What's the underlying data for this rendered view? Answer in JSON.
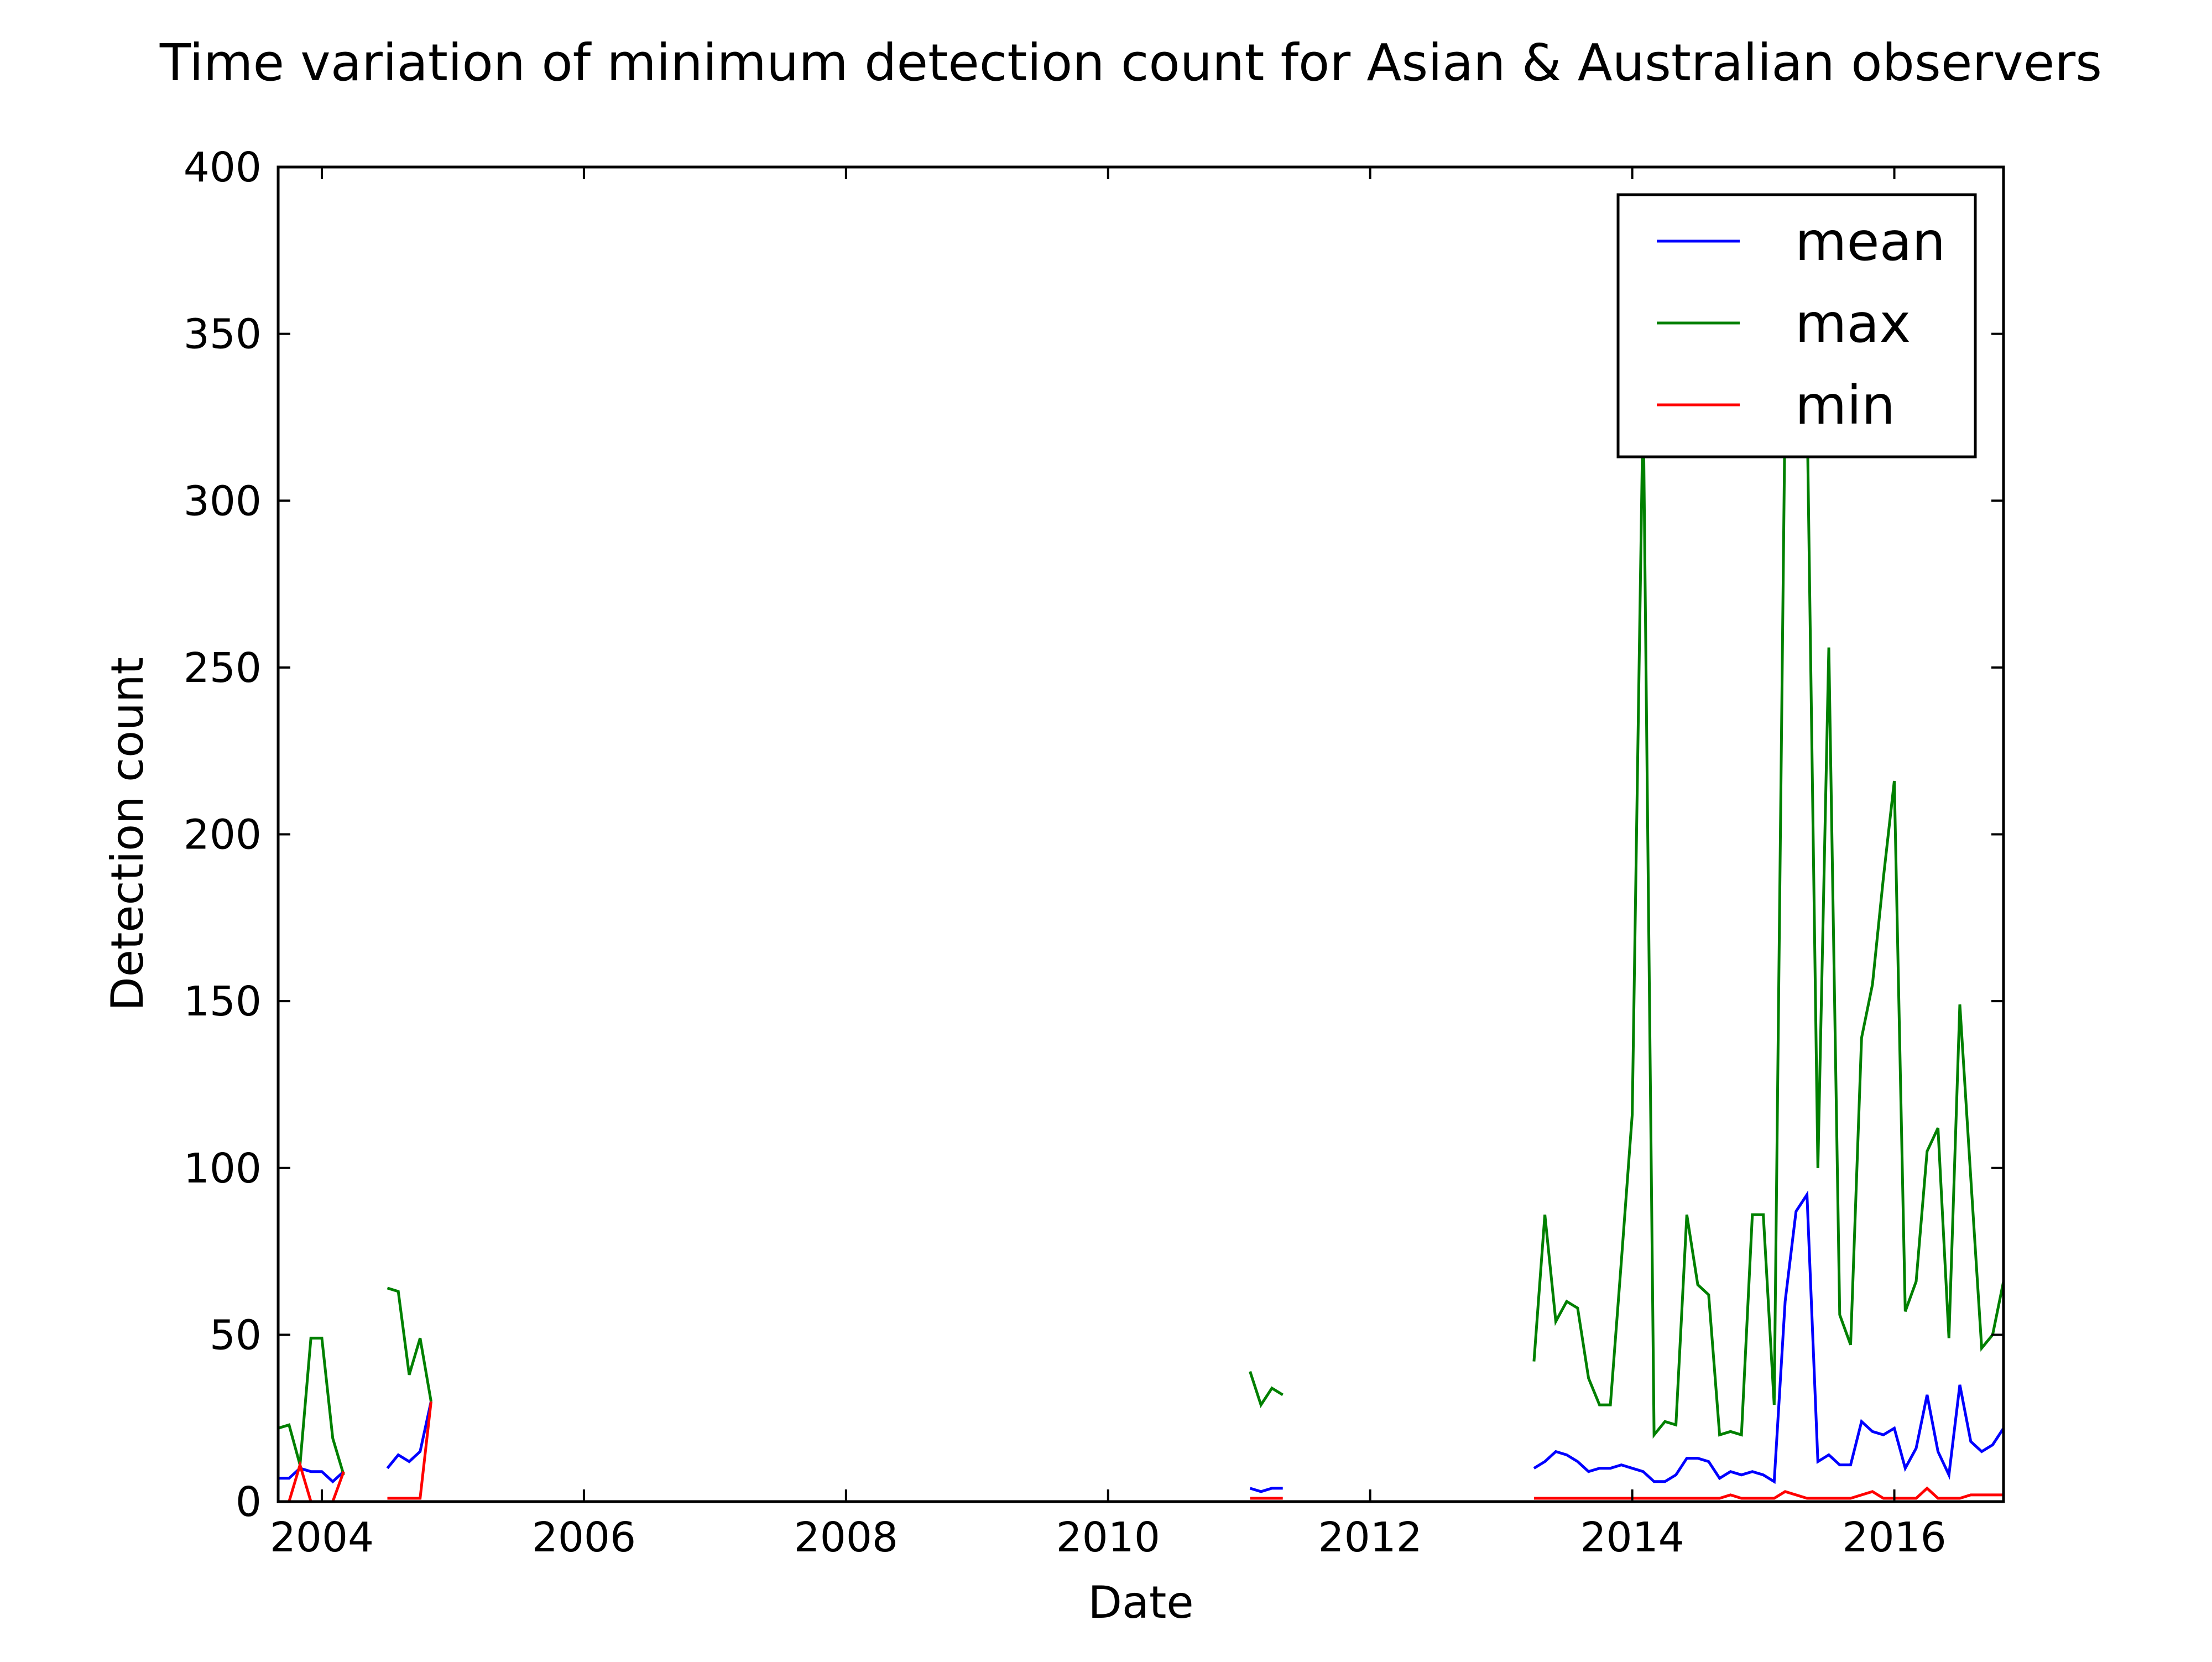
{
  "chart_data": {
    "type": "line",
    "title": "Time variation of minimum detection count for Asian & Australian observers",
    "xlabel": "Date",
    "ylabel": "Detection count",
    "xlim": [
      "2003-09",
      "2016-11"
    ],
    "ylim": [
      0,
      400
    ],
    "x_ticks": [
      "2004",
      "2006",
      "2008",
      "2010",
      "2012",
      "2014",
      "2016"
    ],
    "y_ticks": [
      "0",
      "50",
      "100",
      "150",
      "200",
      "250",
      "300",
      "350",
      "400"
    ],
    "grid": false,
    "legend_position": "top-right",
    "series": [
      {
        "name": "mean",
        "color": "#0000ff",
        "segments": [
          [
            [
              "2003-09",
              7
            ],
            [
              "2003-10",
              7
            ],
            [
              "2003-11",
              10
            ],
            [
              "2003-12",
              9
            ],
            [
              "2004-01",
              9
            ],
            [
              "2004-02",
              6
            ],
            [
              "2004-03",
              9
            ]
          ],
          [
            [
              "2004-07",
              10
            ],
            [
              "2004-08",
              14
            ],
            [
              "2004-09",
              12
            ],
            [
              "2004-10",
              15
            ],
            [
              "2004-11",
              30
            ]
          ],
          [
            [
              "2011-02",
              4
            ],
            [
              "2011-03",
              3
            ],
            [
              "2011-04",
              4
            ],
            [
              "2011-05",
              4
            ]
          ],
          [
            [
              "2013-04",
              10
            ],
            [
              "2013-05",
              12
            ],
            [
              "2013-06",
              15
            ],
            [
              "2013-07",
              14
            ],
            [
              "2013-08",
              12
            ],
            [
              "2013-09",
              9
            ],
            [
              "2013-10",
              10
            ],
            [
              "2013-11",
              10
            ],
            [
              "2013-12",
              11
            ],
            [
              "2014-01",
              10
            ],
            [
              "2014-02",
              9
            ],
            [
              "2014-03",
              6
            ],
            [
              "2014-04",
              6
            ],
            [
              "2014-05",
              8
            ],
            [
              "2014-06",
              13
            ],
            [
              "2014-07",
              13
            ],
            [
              "2014-08",
              12
            ],
            [
              "2014-09",
              7
            ],
            [
              "2014-10",
              9
            ],
            [
              "2014-11",
              8
            ],
            [
              "2014-12",
              9
            ],
            [
              "2015-01",
              8
            ],
            [
              "2015-02",
              6
            ],
            [
              "2015-03",
              60
            ],
            [
              "2015-04",
              87
            ],
            [
              "2015-05",
              92
            ],
            [
              "2015-06",
              12
            ],
            [
              "2015-07",
              14
            ],
            [
              "2015-08",
              11
            ],
            [
              "2015-09",
              11
            ],
            [
              "2015-10",
              24
            ],
            [
              "2015-11",
              21
            ],
            [
              "2015-12",
              20
            ],
            [
              "2016-01",
              22
            ],
            [
              "2016-02",
              10
            ],
            [
              "2016-03",
              16
            ],
            [
              "2016-04",
              32
            ],
            [
              "2016-05",
              15
            ],
            [
              "2016-06",
              8
            ],
            [
              "2016-07",
              35
            ],
            [
              "2016-08",
              18
            ],
            [
              "2016-09",
              15
            ],
            [
              "2016-10",
              17
            ],
            [
              "2016-11",
              22
            ]
          ]
        ]
      },
      {
        "name": "max",
        "color": "#008000",
        "segments": [
          [
            [
              "2003-09",
              22
            ],
            [
              "2003-10",
              23
            ],
            [
              "2003-11",
              11
            ],
            [
              "2003-12",
              49
            ],
            [
              "2004-01",
              49
            ],
            [
              "2004-02",
              19
            ],
            [
              "2004-03",
              8
            ]
          ],
          [
            [
              "2004-07",
              64
            ],
            [
              "2004-08",
              63
            ],
            [
              "2004-09",
              38
            ],
            [
              "2004-10",
              49
            ],
            [
              "2004-11",
              30
            ]
          ],
          [
            [
              "2011-02",
              39
            ],
            [
              "2011-03",
              29
            ],
            [
              "2011-04",
              34
            ],
            [
              "2011-05",
              32
            ]
          ],
          [
            [
              "2013-04",
              42
            ],
            [
              "2013-05",
              86
            ],
            [
              "2013-06",
              54
            ],
            [
              "2013-07",
              60
            ],
            [
              "2013-08",
              58
            ],
            [
              "2013-09",
              37
            ],
            [
              "2013-10",
              29
            ],
            [
              "2013-11",
              29
            ],
            [
              "2013-12",
              72
            ],
            [
              "2014-01",
              116
            ],
            [
              "2014-02",
              330
            ],
            [
              "2014-03",
              20
            ],
            [
              "2014-04",
              24
            ],
            [
              "2014-05",
              23
            ],
            [
              "2014-06",
              86
            ],
            [
              "2014-07",
              65
            ],
            [
              "2014-08",
              62
            ],
            [
              "2014-09",
              20
            ],
            [
              "2014-10",
              21
            ],
            [
              "2014-11",
              20
            ],
            [
              "2014-12",
              86
            ],
            [
              "2015-01",
              86
            ],
            [
              "2015-02",
              29
            ],
            [
              "2015-03",
              330
            ],
            [
              "2015-04",
              330
            ],
            [
              "2015-05",
              330
            ],
            [
              "2015-06",
              100
            ],
            [
              "2015-07",
              256
            ],
            [
              "2015-08",
              56
            ],
            [
              "2015-09",
              47
            ],
            [
              "2015-10",
              139
            ],
            [
              "2015-11",
              155
            ],
            [
              "2015-12",
              187
            ],
            [
              "2016-01",
              216
            ],
            [
              "2016-02",
              57
            ],
            [
              "2016-03",
              66
            ],
            [
              "2016-04",
              105
            ],
            [
              "2016-05",
              112
            ],
            [
              "2016-06",
              49
            ],
            [
              "2016-07",
              149
            ],
            [
              "2016-08",
              97
            ],
            [
              "2016-09",
              46
            ],
            [
              "2016-10",
              50
            ],
            [
              "2016-11",
              66
            ]
          ]
        ]
      },
      {
        "name": "min",
        "color": "#ff0000",
        "segments": [
          [
            [
              "2003-09",
              0
            ],
            [
              "2003-10",
              0
            ],
            [
              "2003-11",
              11
            ],
            [
              "2003-12",
              0
            ],
            [
              "2004-01",
              0
            ],
            [
              "2004-02",
              0
            ],
            [
              "2004-03",
              9
            ]
          ],
          [
            [
              "2004-07",
              1
            ],
            [
              "2004-08",
              1
            ],
            [
              "2004-09",
              1
            ],
            [
              "2004-10",
              1
            ],
            [
              "2004-11",
              30
            ]
          ],
          [
            [
              "2011-02",
              1
            ],
            [
              "2011-03",
              1
            ],
            [
              "2011-04",
              1
            ],
            [
              "2011-05",
              1
            ]
          ],
          [
            [
              "2013-04",
              1
            ],
            [
              "2013-05",
              1
            ],
            [
              "2013-06",
              1
            ],
            [
              "2013-07",
              1
            ],
            [
              "2013-08",
              1
            ],
            [
              "2013-09",
              1
            ],
            [
              "2013-10",
              1
            ],
            [
              "2013-11",
              1
            ],
            [
              "2013-12",
              1
            ],
            [
              "2014-01",
              1
            ],
            [
              "2014-02",
              1
            ],
            [
              "2014-03",
              1
            ],
            [
              "2014-04",
              1
            ],
            [
              "2014-05",
              1
            ],
            [
              "2014-06",
              1
            ],
            [
              "2014-07",
              1
            ],
            [
              "2014-08",
              1
            ],
            [
              "2014-09",
              1
            ],
            [
              "2014-10",
              2
            ],
            [
              "2014-11",
              1
            ],
            [
              "2014-12",
              1
            ],
            [
              "2015-01",
              1
            ],
            [
              "2015-02",
              1
            ],
            [
              "2015-03",
              3
            ],
            [
              "2015-04",
              2
            ],
            [
              "2015-05",
              1
            ],
            [
              "2015-06",
              1
            ],
            [
              "2015-07",
              1
            ],
            [
              "2015-08",
              1
            ],
            [
              "2015-09",
              1
            ],
            [
              "2015-10",
              2
            ],
            [
              "2015-11",
              3
            ],
            [
              "2015-12",
              1
            ],
            [
              "2016-01",
              1
            ],
            [
              "2016-02",
              1
            ],
            [
              "2016-03",
              1
            ],
            [
              "2016-04",
              4
            ],
            [
              "2016-05",
              1
            ],
            [
              "2016-06",
              1
            ],
            [
              "2016-07",
              1
            ],
            [
              "2016-08",
              2
            ],
            [
              "2016-09",
              2
            ],
            [
              "2016-10",
              2
            ],
            [
              "2016-11",
              2
            ]
          ]
        ]
      }
    ]
  }
}
